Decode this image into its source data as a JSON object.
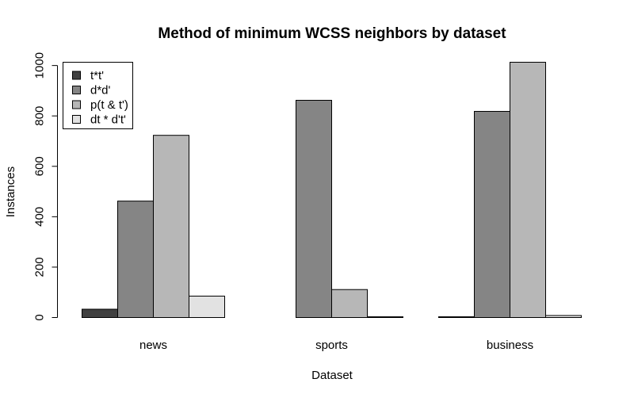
{
  "chart_data": {
    "type": "bar",
    "title": "Method of minimum WCSS neighbors by dataset",
    "xlabel": "Dataset",
    "ylabel": "Instances",
    "categories": [
      "news",
      "sports",
      "business"
    ],
    "series": [
      {
        "name": "t*t'",
        "color": "#404040",
        "values": [
          33,
          0,
          3
        ]
      },
      {
        "name": "d*d'",
        "color": "#858585",
        "values": [
          462,
          862,
          818
        ]
      },
      {
        "name": "p(t & t')",
        "color": "#b7b7b7",
        "values": [
          723,
          111,
          1013
        ]
      },
      {
        "name": "dt * d't'",
        "color": "#e2e2e2",
        "values": [
          85,
          3,
          8
        ]
      }
    ],
    "yticks": [
      0,
      200,
      400,
      600,
      800,
      1000
    ],
    "ylim": [
      0,
      1013
    ],
    "grid": false,
    "legend": "top-left"
  }
}
